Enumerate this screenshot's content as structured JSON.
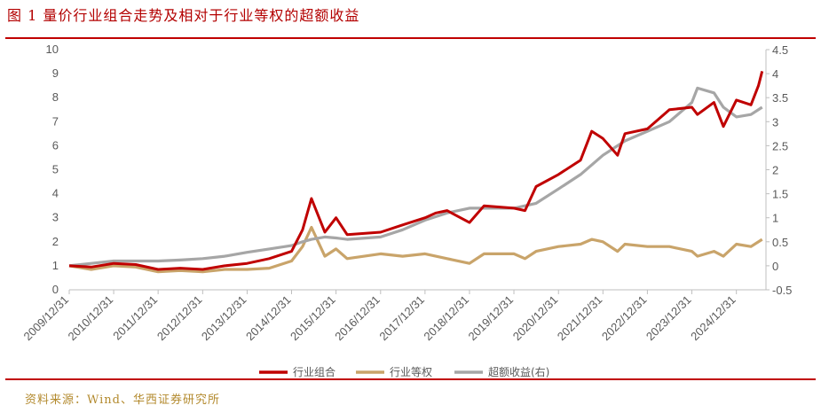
{
  "title": "图 1 量价行业组合走势及相对于行业等权的超额收益",
  "source": "资料来源：Wind、华西证券研究所",
  "chart_data": {
    "type": "line",
    "title": "",
    "x_ticks": [
      "2009/12/31",
      "2010/12/31",
      "2011/12/31",
      "2012/12/31",
      "2013/12/31",
      "2014/12/31",
      "2015/12/31",
      "2016/12/31",
      "2017/12/31",
      "2018/12/31",
      "2019/12/31",
      "2020/12/31",
      "2021/12/31",
      "2022/12/31",
      "2023/12/31",
      "2024/12/31"
    ],
    "y_left": {
      "min": 0,
      "max": 10,
      "ticks": [
        0,
        1,
        2,
        3,
        4,
        5,
        6,
        7,
        8,
        9,
        10
      ]
    },
    "y_right": {
      "min": -0.5,
      "max": 4.5,
      "ticks": [
        "-0.5",
        "0",
        "0.5",
        "1",
        "1.5",
        "2",
        "2.5",
        "3",
        "3.5",
        "4",
        "4.5"
      ]
    },
    "legend_position": "bottom",
    "series": [
      {
        "name": "行业组合",
        "color": "#c00000",
        "axis": "left",
        "points": [
          [
            "2009/12/31",
            1.0
          ],
          [
            "2010/06/30",
            0.95
          ],
          [
            "2010/12/31",
            1.1
          ],
          [
            "2011/06/30",
            1.05
          ],
          [
            "2011/12/31",
            0.85
          ],
          [
            "2012/06/30",
            0.9
          ],
          [
            "2012/12/31",
            0.85
          ],
          [
            "2013/06/30",
            1.0
          ],
          [
            "2013/12/31",
            1.1
          ],
          [
            "2014/06/30",
            1.3
          ],
          [
            "2014/12/31",
            1.6
          ],
          [
            "2015/03/31",
            2.5
          ],
          [
            "2015/06/12",
            3.8
          ],
          [
            "2015/09/30",
            2.4
          ],
          [
            "2015/12/31",
            3.0
          ],
          [
            "2016/03/31",
            2.3
          ],
          [
            "2016/12/31",
            2.4
          ],
          [
            "2017/06/30",
            2.7
          ],
          [
            "2017/12/31",
            3.0
          ],
          [
            "2018/03/31",
            3.2
          ],
          [
            "2018/06/30",
            3.3
          ],
          [
            "2018/12/31",
            2.8
          ],
          [
            "2019/04/30",
            3.5
          ],
          [
            "2019/12/31",
            3.4
          ],
          [
            "2020/03/31",
            3.3
          ],
          [
            "2020/06/30",
            4.3
          ],
          [
            "2020/12/31",
            4.8
          ],
          [
            "2021/06/30",
            5.4
          ],
          [
            "2021/09/30",
            6.6
          ],
          [
            "2021/12/31",
            6.3
          ],
          [
            "2022/04/30",
            5.6
          ],
          [
            "2022/06/30",
            6.5
          ],
          [
            "2022/12/31",
            6.7
          ],
          [
            "2023/06/30",
            7.5
          ],
          [
            "2023/12/31",
            7.6
          ],
          [
            "2024/02/15",
            7.3
          ],
          [
            "2024/06/30",
            7.8
          ],
          [
            "2024/09/15",
            6.8
          ],
          [
            "2024/12/31",
            7.9
          ],
          [
            "2025/04/30",
            7.7
          ],
          [
            "2025/06/30",
            8.5
          ],
          [
            "2025/07/31",
            9.1
          ]
        ]
      },
      {
        "name": "行业等权",
        "color": "#c9a46a",
        "axis": "left",
        "points": [
          [
            "2009/12/31",
            1.0
          ],
          [
            "2010/06/30",
            0.85
          ],
          [
            "2010/12/31",
            1.0
          ],
          [
            "2011/06/30",
            0.95
          ],
          [
            "2011/12/31",
            0.75
          ],
          [
            "2012/06/30",
            0.8
          ],
          [
            "2012/12/31",
            0.75
          ],
          [
            "2013/06/30",
            0.85
          ],
          [
            "2013/12/31",
            0.85
          ],
          [
            "2014/06/30",
            0.9
          ],
          [
            "2014/12/31",
            1.2
          ],
          [
            "2015/03/31",
            1.8
          ],
          [
            "2015/06/12",
            2.6
          ],
          [
            "2015/09/30",
            1.4
          ],
          [
            "2015/12/31",
            1.7
          ],
          [
            "2016/03/31",
            1.3
          ],
          [
            "2016/12/31",
            1.5
          ],
          [
            "2017/06/30",
            1.4
          ],
          [
            "2017/12/31",
            1.5
          ],
          [
            "2018/06/30",
            1.3
          ],
          [
            "2018/12/31",
            1.1
          ],
          [
            "2019/04/30",
            1.5
          ],
          [
            "2019/12/31",
            1.5
          ],
          [
            "2020/03/31",
            1.3
          ],
          [
            "2020/06/30",
            1.6
          ],
          [
            "2020/12/31",
            1.8
          ],
          [
            "2021/06/30",
            1.9
          ],
          [
            "2021/09/30",
            2.1
          ],
          [
            "2021/12/31",
            2.0
          ],
          [
            "2022/04/30",
            1.6
          ],
          [
            "2022/06/30",
            1.9
          ],
          [
            "2022/12/31",
            1.8
          ],
          [
            "2023/06/30",
            1.8
          ],
          [
            "2023/12/31",
            1.6
          ],
          [
            "2024/02/15",
            1.4
          ],
          [
            "2024/06/30",
            1.6
          ],
          [
            "2024/09/15",
            1.4
          ],
          [
            "2024/12/31",
            1.9
          ],
          [
            "2025/04/30",
            1.8
          ],
          [
            "2025/07/31",
            2.1
          ]
        ]
      },
      {
        "name": "超额收益(右)",
        "color": "#a6a6a6",
        "axis": "right",
        "points": [
          [
            "2009/12/31",
            0.0
          ],
          [
            "2010/06/30",
            0.05
          ],
          [
            "2010/12/31",
            0.1
          ],
          [
            "2011/06/30",
            0.1
          ],
          [
            "2011/12/31",
            0.1
          ],
          [
            "2012/06/30",
            0.12
          ],
          [
            "2012/12/31",
            0.15
          ],
          [
            "2013/06/30",
            0.2
          ],
          [
            "2013/12/31",
            0.28
          ],
          [
            "2014/06/30",
            0.35
          ],
          [
            "2014/12/31",
            0.42
          ],
          [
            "2015/03/31",
            0.5
          ],
          [
            "2015/06/12",
            0.55
          ],
          [
            "2015/09/30",
            0.6
          ],
          [
            "2015/12/31",
            0.58
          ],
          [
            "2016/03/31",
            0.55
          ],
          [
            "2016/12/31",
            0.6
          ],
          [
            "2017/06/30",
            0.75
          ],
          [
            "2017/12/31",
            0.95
          ],
          [
            "2018/06/30",
            1.1
          ],
          [
            "2018/12/31",
            1.2
          ],
          [
            "2019/06/30",
            1.2
          ],
          [
            "2019/12/31",
            1.2
          ],
          [
            "2020/06/30",
            1.3
          ],
          [
            "2020/12/31",
            1.6
          ],
          [
            "2021/06/30",
            1.9
          ],
          [
            "2021/12/31",
            2.3
          ],
          [
            "2022/06/30",
            2.6
          ],
          [
            "2022/12/31",
            2.8
          ],
          [
            "2023/06/30",
            3.0
          ],
          [
            "2023/12/31",
            3.4
          ],
          [
            "2024/02/15",
            3.7
          ],
          [
            "2024/06/30",
            3.6
          ],
          [
            "2024/09/15",
            3.3
          ],
          [
            "2024/12/31",
            3.1
          ],
          [
            "2025/04/30",
            3.15
          ],
          [
            "2025/07/31",
            3.3
          ]
        ]
      }
    ]
  }
}
